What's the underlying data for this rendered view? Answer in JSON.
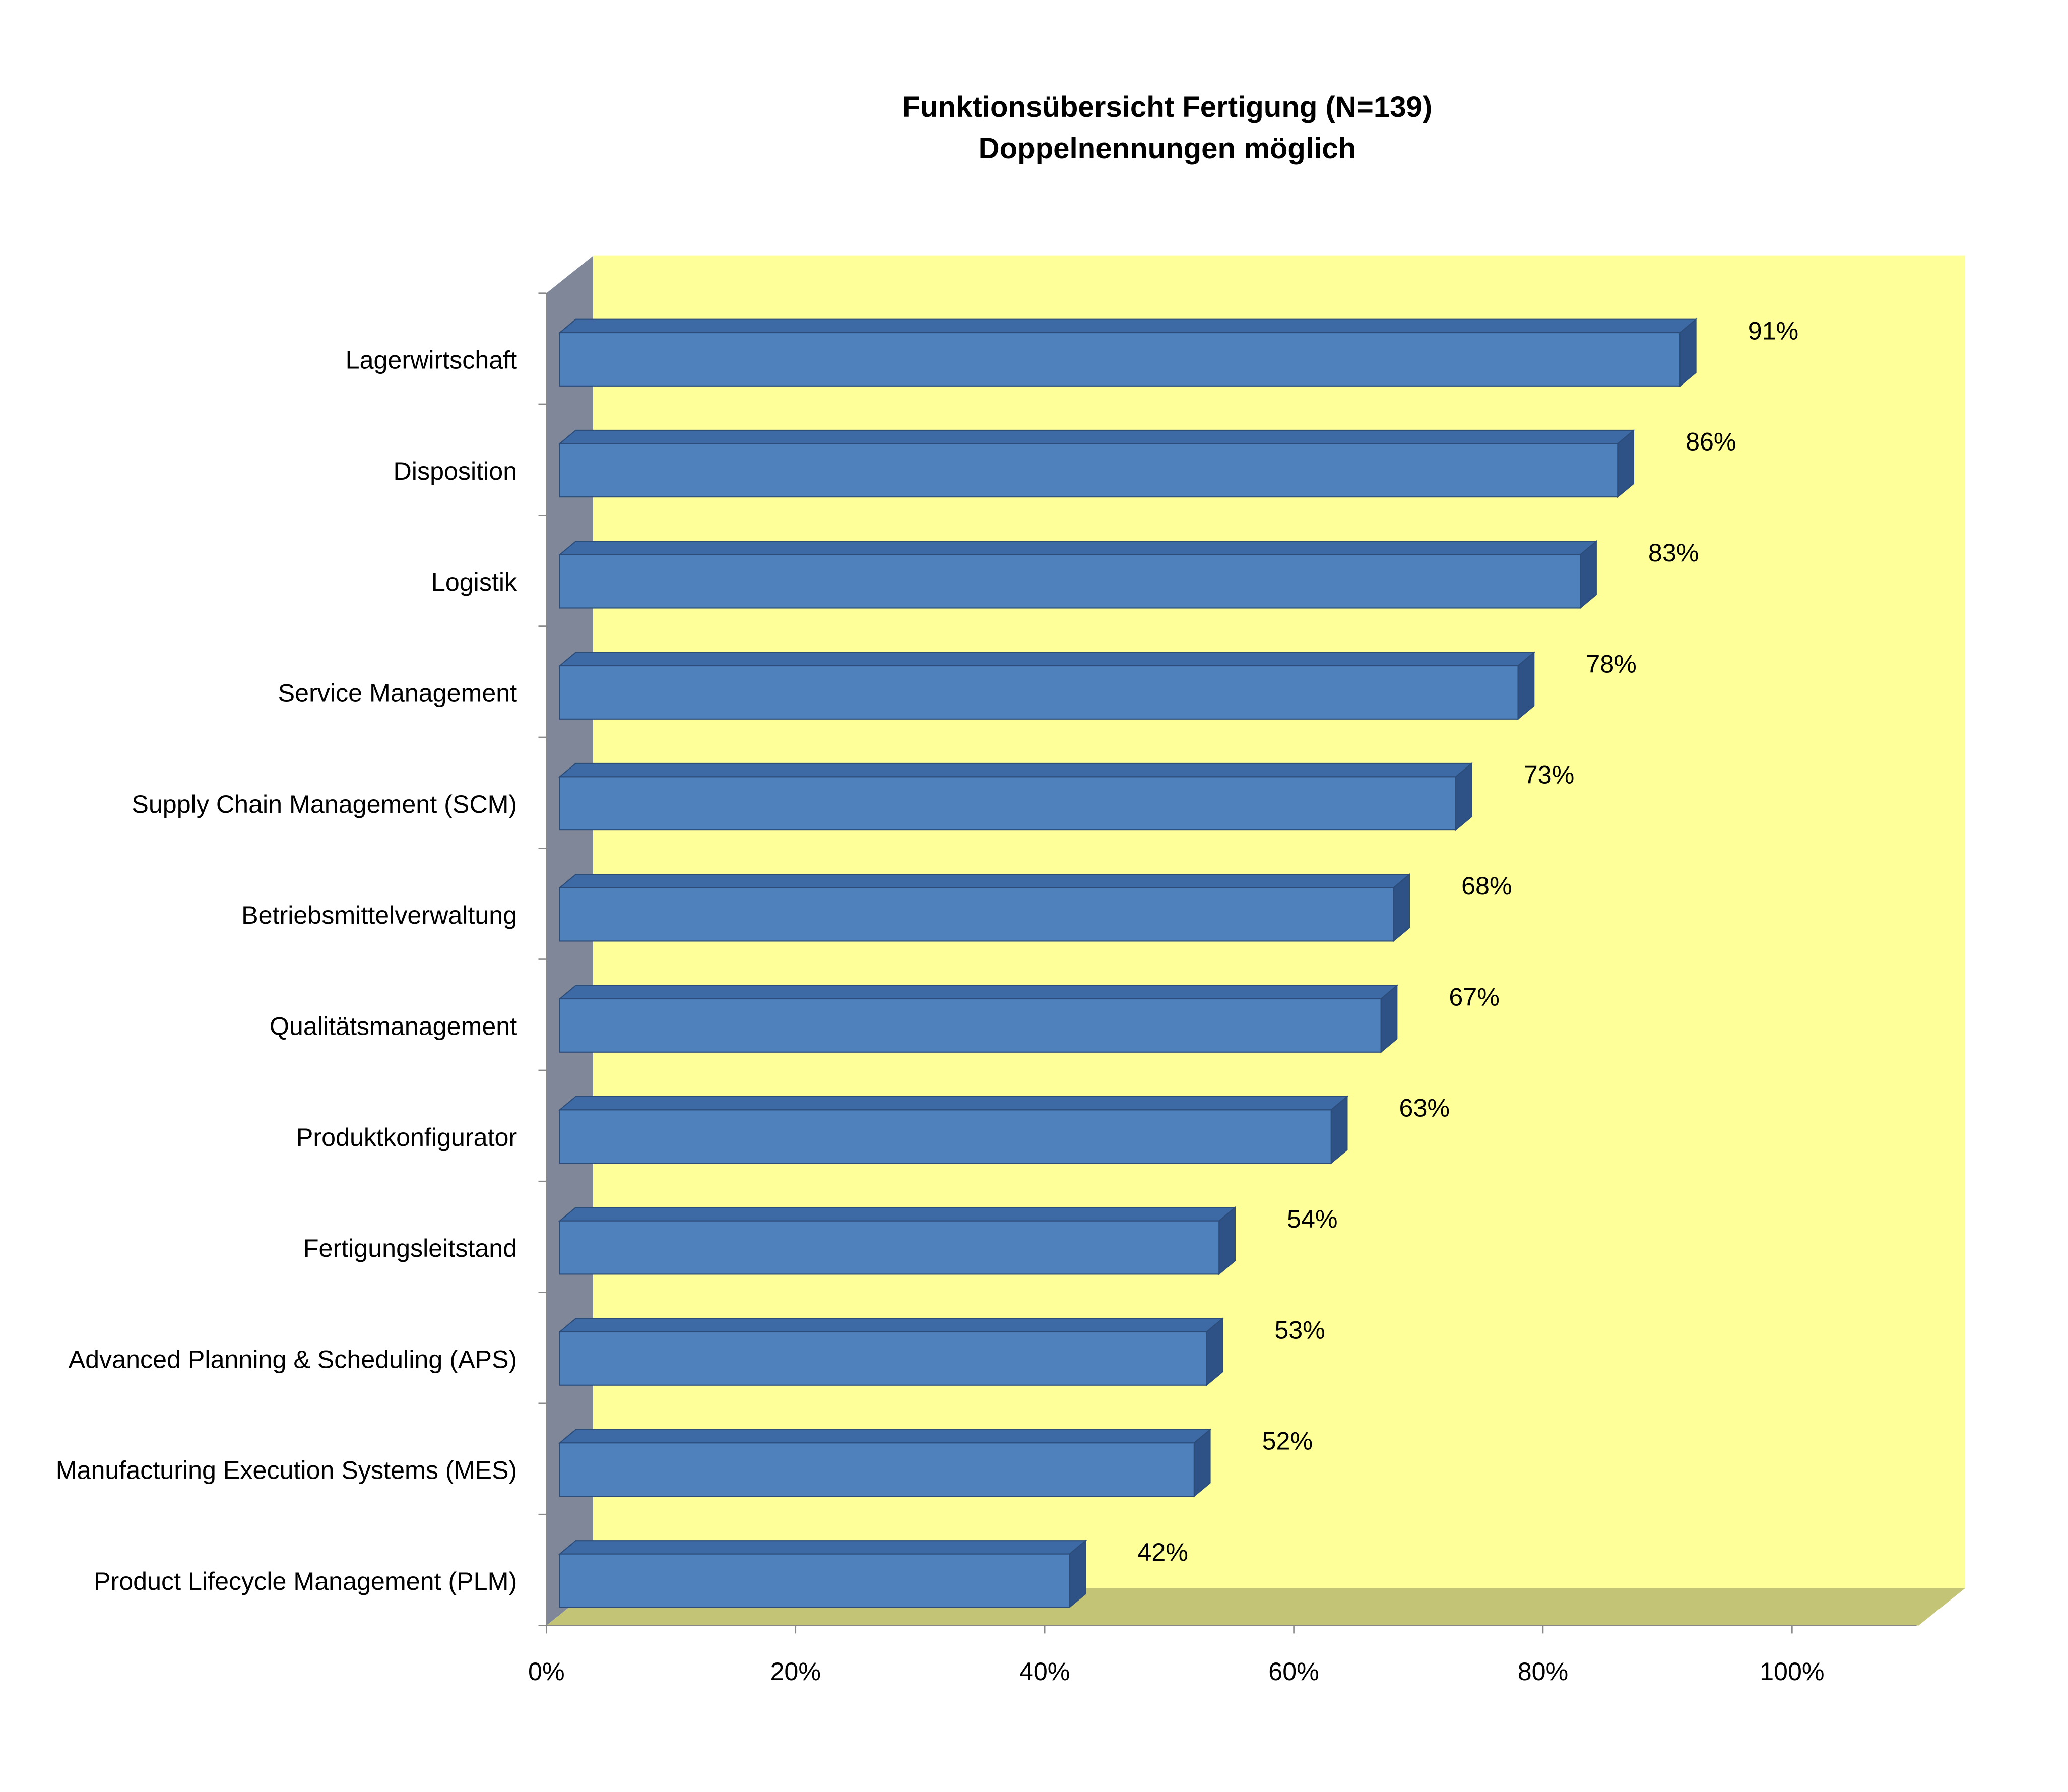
{
  "chart_data": {
    "type": "bar",
    "orientation": "horizontal",
    "title": "Funktionsübersicht Fertigung (N=139)",
    "subtitle": "Doppelnennungen möglich",
    "categories": [
      "Lagerwirtschaft",
      "Disposition",
      "Logistik",
      "Service Management",
      "Supply Chain Management (SCM)",
      "Betriebsmittelverwaltung",
      "Qualitätsmanagement",
      "Produktkonfigurator",
      "Fertigungsleitstand",
      "Advanced Planning & Scheduling (APS)",
      "Manufacturing Execution Systems (MES)",
      "Product Lifecycle Management (PLM)"
    ],
    "values": [
      91,
      86,
      83,
      78,
      73,
      68,
      67,
      63,
      54,
      53,
      52,
      42
    ],
    "value_labels": [
      "91%",
      "86%",
      "83%",
      "78%",
      "73%",
      "68%",
      "67%",
      "63%",
      "54%",
      "53%",
      "52%",
      "42%"
    ],
    "color": "#4f81bd",
    "xlim": [
      0,
      110
    ],
    "xticks": [
      {
        "value": 0,
        "label": "0%"
      },
      {
        "value": 20,
        "label": "20%"
      },
      {
        "value": 40,
        "label": "40%"
      },
      {
        "value": 60,
        "label": "60%"
      },
      {
        "value": 80,
        "label": "80%"
      },
      {
        "value": 100,
        "label": "100%"
      }
    ]
  }
}
